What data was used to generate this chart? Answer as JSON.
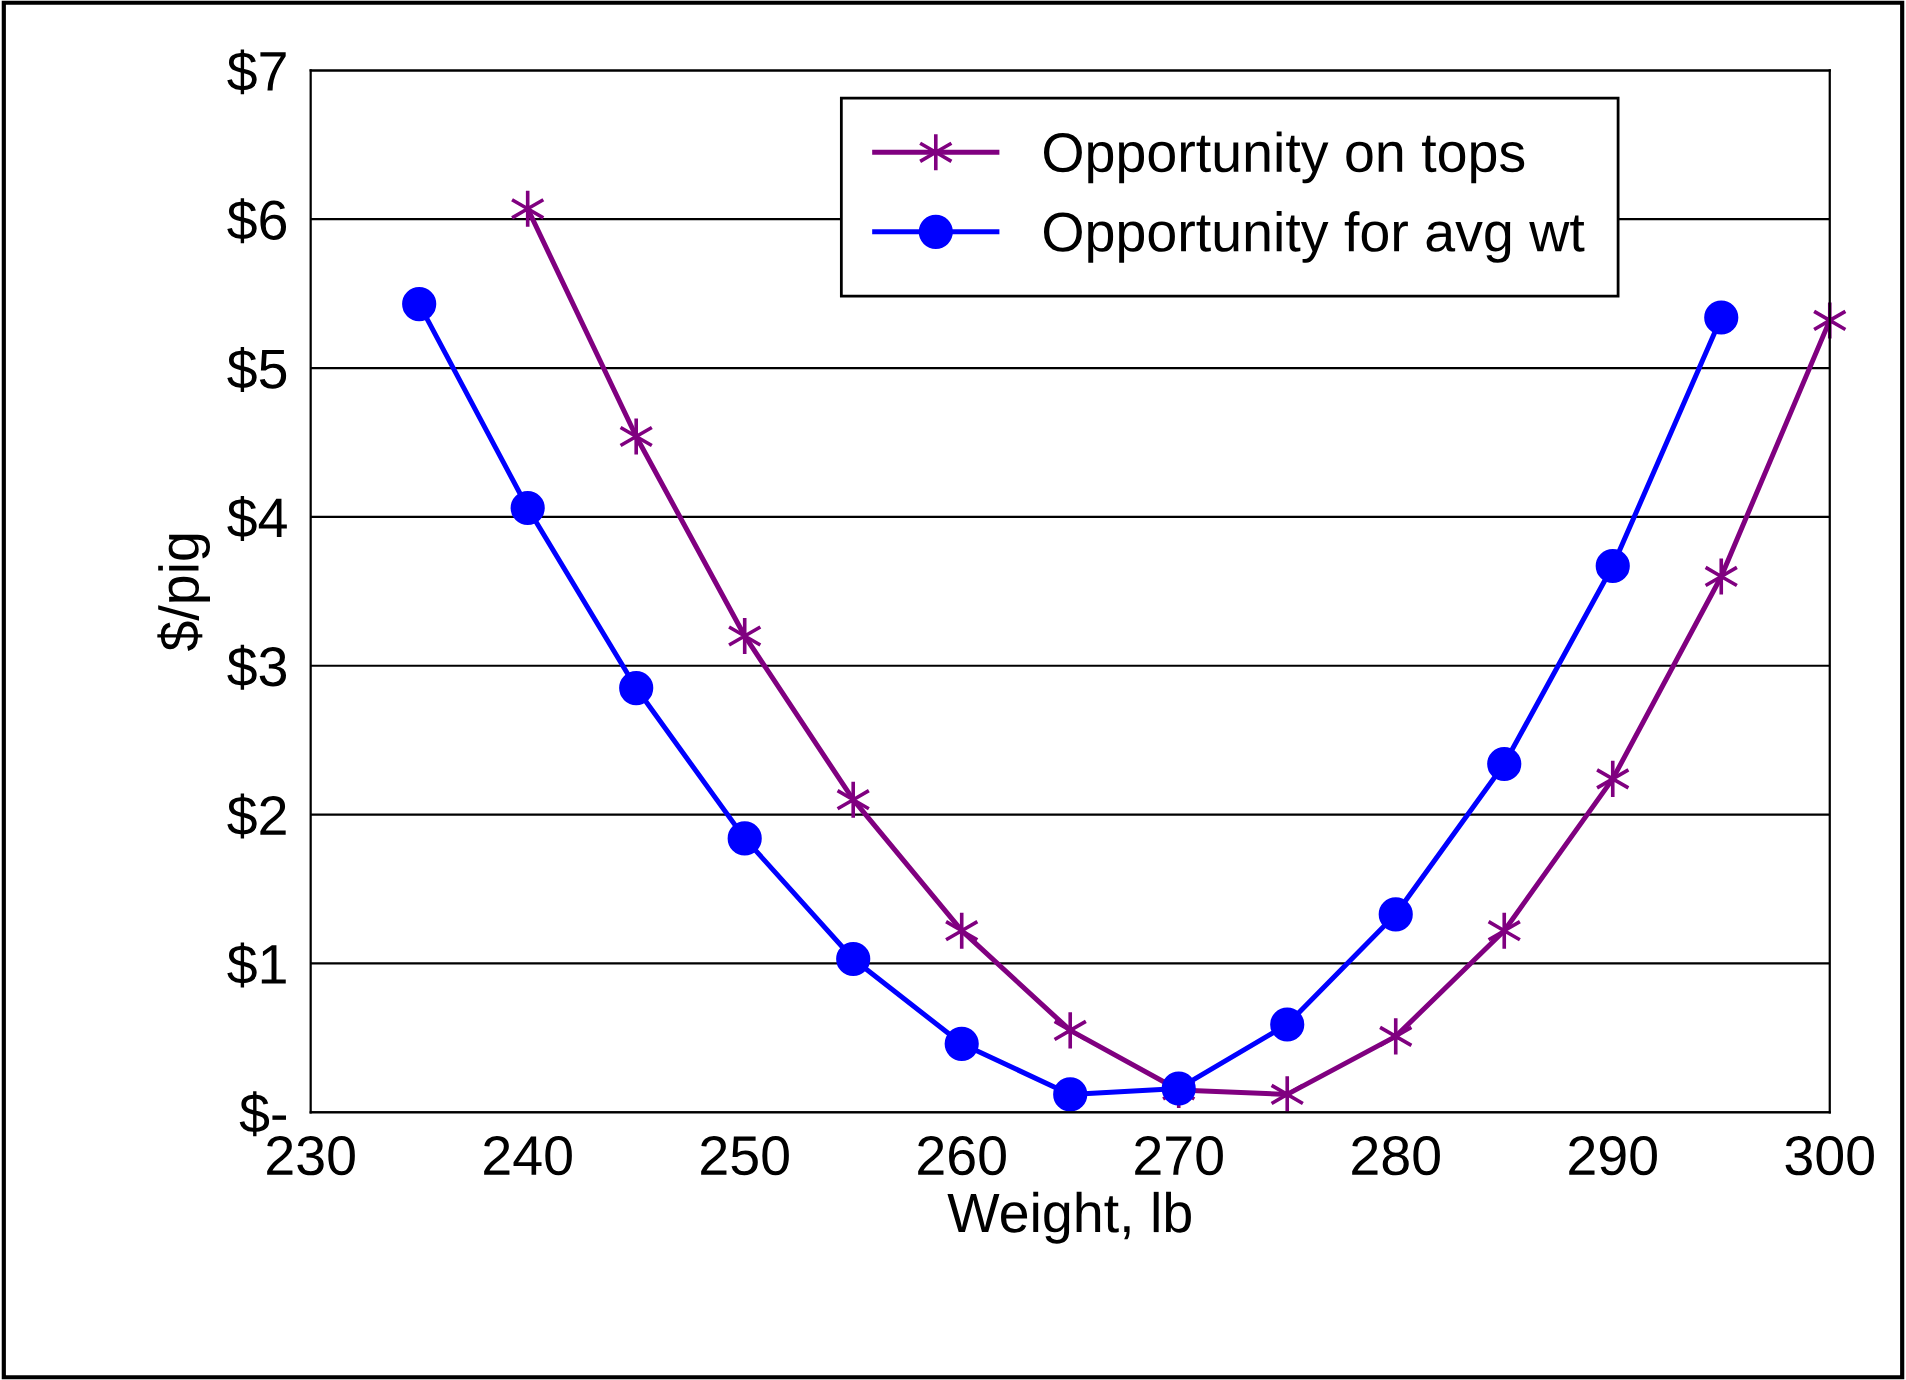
{
  "chart_data": {
    "type": "line",
    "xlabel": "Weight, lb",
    "ylabel": "$/pig",
    "xlim": [
      230,
      300
    ],
    "xticks": [
      230,
      240,
      250,
      260,
      270,
      280,
      290,
      300
    ],
    "ylim": [
      0,
      7
    ],
    "yticks": [
      {
        "value": 0,
        "label": "$-"
      },
      {
        "value": 1,
        "label": "$1"
      },
      {
        "value": 2,
        "label": "$2"
      },
      {
        "value": 3,
        "label": "$3"
      },
      {
        "value": 4,
        "label": "$4"
      },
      {
        "value": 5,
        "label": "$5"
      },
      {
        "value": 6,
        "label": "$6"
      },
      {
        "value": 7,
        "label": "$7"
      }
    ],
    "grid": "y",
    "legend": "top",
    "line_style": "solid",
    "series": [
      {
        "name": "Opportunity on tops",
        "color": "#800080",
        "marker": "cross",
        "x": [
          240,
          245,
          250,
          255,
          260,
          265,
          270,
          275,
          280,
          285,
          290,
          295,
          300
        ],
        "values": [
          6.07,
          4.54,
          3.2,
          2.1,
          1.22,
          0.55,
          0.15,
          0.12,
          0.51,
          1.22,
          2.24,
          3.6,
          5.32
        ]
      },
      {
        "name": "Opportunity for avg wt",
        "color": "#0000ff",
        "marker": "circle",
        "x": [
          235,
          240,
          245,
          250,
          255,
          260,
          265,
          270,
          275,
          280,
          285,
          290,
          295
        ],
        "values": [
          5.43,
          4.06,
          2.85,
          1.84,
          1.03,
          0.46,
          0.12,
          0.16,
          0.59,
          1.33,
          2.34,
          3.67,
          5.34
        ]
      }
    ]
  }
}
